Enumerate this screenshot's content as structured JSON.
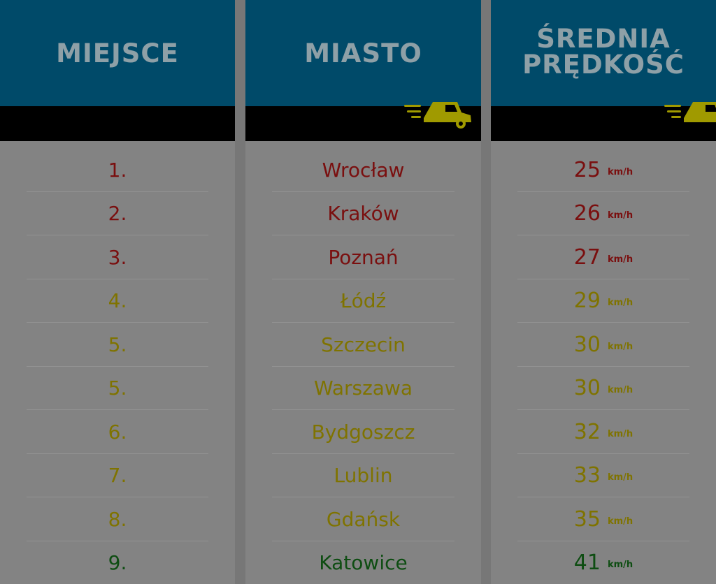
{
  "headers": {
    "place": "MIEJSCE",
    "city": "MIASTO",
    "speed": "ŚREDNIA\nPRĘDKOŚĆ"
  },
  "unit": "km/h",
  "icons": {
    "header_icon": "delivery-truck-icon"
  },
  "colors": {
    "header_bg": "#004a69",
    "header_text": "#8ea0a7",
    "band": "#000000",
    "body_bg": "#838383",
    "slow": "#7a0f0f",
    "medium": "#7f7300",
    "fast": "#0e4d12",
    "truck": "#a09a00"
  },
  "rows": [
    {
      "rank": "1.",
      "city": "Wrocław",
      "speed": "25",
      "tier": "slow"
    },
    {
      "rank": "2.",
      "city": "Kraków",
      "speed": "26",
      "tier": "slow"
    },
    {
      "rank": "3.",
      "city": "Poznań",
      "speed": "27",
      "tier": "slow"
    },
    {
      "rank": "4.",
      "city": "Łódź",
      "speed": "29",
      "tier": "medium"
    },
    {
      "rank": "5.",
      "city": "Szczecin",
      "speed": "30",
      "tier": "medium"
    },
    {
      "rank": "5.",
      "city": "Warszawa",
      "speed": "30",
      "tier": "medium"
    },
    {
      "rank": "6.",
      "city": "Bydgoszcz",
      "speed": "32",
      "tier": "medium"
    },
    {
      "rank": "7.",
      "city": "Lublin",
      "speed": "33",
      "tier": "medium"
    },
    {
      "rank": "8.",
      "city": "Gdańsk",
      "speed": "35",
      "tier": "medium"
    },
    {
      "rank": "9.",
      "city": "Katowice",
      "speed": "41",
      "tier": "fast"
    }
  ]
}
